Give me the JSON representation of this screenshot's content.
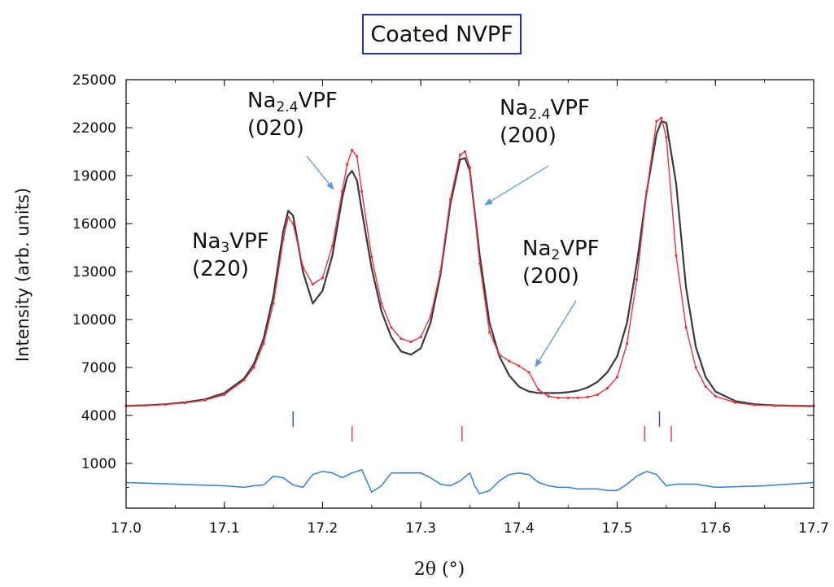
{
  "chart_data": {
    "type": "line",
    "title": "Coated NVPF",
    "xlabel": "2θ (°)",
    "ylabel": "Intensity (arb. units)",
    "xlim": [
      17.0,
      17.7
    ],
    "ylim": [
      -1800,
      25000
    ],
    "x_ticks": [
      17.0,
      17.1,
      17.2,
      17.3,
      17.4,
      17.5,
      17.6,
      17.7
    ],
    "x_tick_labels": [
      "17.0",
      "17.1",
      "17.2",
      "17.3",
      "17.4",
      "17.5",
      "17.6",
      "17.7"
    ],
    "y_ticks": [
      1000,
      4000,
      7000,
      10000,
      13000,
      16000,
      19000,
      22000,
      25000
    ],
    "y_tick_labels": [
      "1000",
      "4000",
      "7000",
      "10000",
      "13000",
      "16000",
      "19000",
      "22000",
      "25000"
    ],
    "colors": {
      "observed": "#e8333a",
      "calculated": "#3a3a3a",
      "difference": "#2f7fe0",
      "bragg_phase1": "#3344dd",
      "bragg_phase2": "#e8333a",
      "arrows": "#5b9bd5",
      "title_border": "#1f2fd6"
    },
    "series": [
      {
        "role": "observed",
        "x": [
          17.0,
          17.02,
          17.04,
          17.06,
          17.08,
          17.1,
          17.12,
          17.13,
          17.14,
          17.15,
          17.16,
          17.165,
          17.17,
          17.18,
          17.19,
          17.2,
          17.21,
          17.22,
          17.225,
          17.23,
          17.235,
          17.24,
          17.25,
          17.26,
          17.27,
          17.28,
          17.29,
          17.3,
          17.31,
          17.32,
          17.33,
          17.34,
          17.345,
          17.35,
          17.36,
          17.37,
          17.38,
          17.39,
          17.4,
          17.41,
          17.42,
          17.43,
          17.44,
          17.45,
          17.46,
          17.47,
          17.48,
          17.49,
          17.5,
          17.51,
          17.52,
          17.53,
          17.54,
          17.545,
          17.55,
          17.56,
          17.57,
          17.58,
          17.59,
          17.6,
          17.62,
          17.64,
          17.66,
          17.68,
          17.7
        ],
        "y": [
          4600,
          4620,
          4680,
          4780,
          4950,
          5300,
          6200,
          7000,
          8500,
          11000,
          15000,
          16400,
          16000,
          13300,
          12200,
          12600,
          14600,
          18000,
          19700,
          20600,
          20200,
          18000,
          13900,
          11000,
          9500,
          8800,
          8600,
          8900,
          10200,
          13000,
          17500,
          20300,
          20500,
          19500,
          13500,
          9200,
          7800,
          7400,
          7100,
          6700,
          5600,
          5200,
          5100,
          5100,
          5100,
          5150,
          5300,
          5700,
          6400,
          8500,
          12500,
          18000,
          22400,
          22600,
          21400,
          14000,
          9500,
          7000,
          5800,
          5200,
          4800,
          4650,
          4600,
          4600,
          4600
        ]
      },
      {
        "role": "calculated",
        "x": [
          17.0,
          17.02,
          17.04,
          17.06,
          17.08,
          17.1,
          17.12,
          17.13,
          17.14,
          17.15,
          17.16,
          17.165,
          17.17,
          17.18,
          17.19,
          17.2,
          17.21,
          17.22,
          17.225,
          17.23,
          17.235,
          17.24,
          17.25,
          17.26,
          17.27,
          17.28,
          17.29,
          17.3,
          17.31,
          17.32,
          17.33,
          17.34,
          17.345,
          17.35,
          17.36,
          17.37,
          17.38,
          17.39,
          17.4,
          17.41,
          17.42,
          17.43,
          17.44,
          17.45,
          17.46,
          17.47,
          17.48,
          17.49,
          17.5,
          17.51,
          17.52,
          17.53,
          17.54,
          17.545,
          17.55,
          17.56,
          17.57,
          17.58,
          17.59,
          17.6,
          17.62,
          17.64,
          17.66,
          17.68,
          17.7
        ],
        "y": [
          4600,
          4630,
          4700,
          4820,
          5000,
          5400,
          6300,
          7200,
          8800,
          11500,
          15500,
          16800,
          16500,
          13000,
          11000,
          11800,
          14000,
          17600,
          18900,
          19300,
          18700,
          16800,
          13200,
          10500,
          8900,
          8000,
          7800,
          8200,
          9800,
          12800,
          17200,
          20000,
          20100,
          19300,
          14000,
          9800,
          7700,
          6500,
          5800,
          5500,
          5400,
          5400,
          5400,
          5450,
          5550,
          5750,
          6100,
          6700,
          7700,
          9800,
          13500,
          18000,
          21600,
          22400,
          22300,
          18500,
          12000,
          8300,
          6400,
          5500,
          4900,
          4700,
          4630,
          4600,
          4580
        ]
      },
      {
        "role": "difference",
        "x": [
          17.0,
          17.05,
          17.1,
          17.12,
          17.13,
          17.14,
          17.15,
          17.16,
          17.17,
          17.18,
          17.19,
          17.2,
          17.21,
          17.22,
          17.23,
          17.24,
          17.25,
          17.26,
          17.27,
          17.28,
          17.29,
          17.3,
          17.31,
          17.32,
          17.33,
          17.34,
          17.35,
          17.355,
          17.36,
          17.37,
          17.38,
          17.39,
          17.4,
          17.41,
          17.42,
          17.43,
          17.44,
          17.45,
          17.46,
          17.47,
          17.48,
          17.49,
          17.5,
          17.51,
          17.52,
          17.53,
          17.54,
          17.55,
          17.56,
          17.57,
          17.58,
          17.6,
          17.65,
          17.7
        ],
        "y": [
          -200,
          -300,
          -400,
          -500,
          -400,
          -350,
          200,
          100,
          -350,
          -500,
          300,
          500,
          400,
          100,
          400,
          600,
          -800,
          -400,
          400,
          400,
          400,
          400,
          100,
          -300,
          -400,
          -100,
          400,
          -400,
          -900,
          -700,
          -100,
          300,
          400,
          300,
          -200,
          -400,
          -500,
          -500,
          -600,
          -600,
          -600,
          -700,
          -700,
          -300,
          200,
          500,
          300,
          -400,
          -300,
          -300,
          -300,
          -500,
          -400,
          -200
        ]
      }
    ],
    "bragg_ticks": [
      {
        "x": [
          17.17,
          17.543
        ],
        "color_role": "bragg_phase1"
      },
      {
        "x": [
          17.23,
          17.342,
          17.528,
          17.555
        ],
        "color_role": "bragg_phase2"
      }
    ],
    "annotations": [
      {
        "base": "Na",
        "sub": "3",
        "rest": "VPF",
        "line2": "(220)"
      },
      {
        "base": "Na",
        "sub": "2.4",
        "rest": "VPF",
        "line2": "(020)"
      },
      {
        "base": "Na",
        "sub": "2.4",
        "rest": "VPF",
        "line2": "(200)"
      },
      {
        "base": "Na",
        "sub": "2",
        "rest": "VPF",
        "line2": "(200)"
      }
    ]
  }
}
